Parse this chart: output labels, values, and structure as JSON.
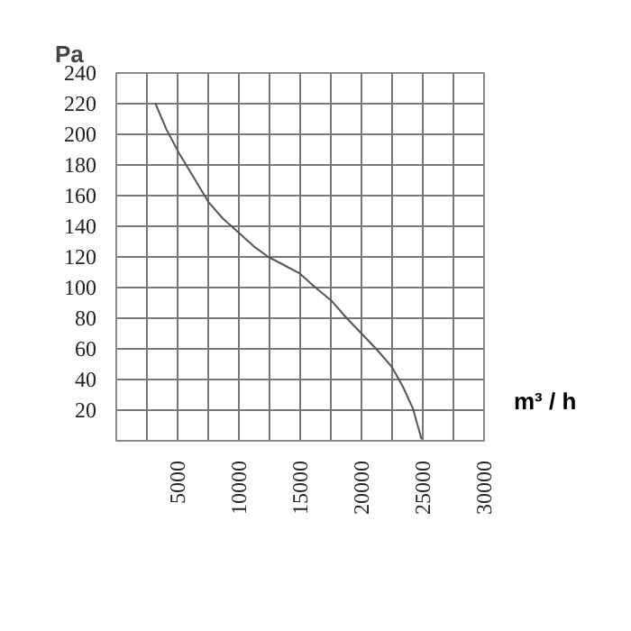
{
  "chart_data": {
    "type": "line",
    "xlabel": "m³ / h",
    "ylabel": "Pa",
    "x": [
      3200,
      4100,
      5100,
      6300,
      7500,
      8700,
      10100,
      11200,
      12400,
      13600,
      15000,
      16100,
      17600,
      18800,
      20000,
      21200,
      22500,
      23400,
      24200,
      24900
    ],
    "series": [
      {
        "color": "#555555",
        "values": [
          220,
          203,
          188,
          172,
          156,
          145,
          135,
          127,
          120,
          115,
          109,
          101,
          91,
          80,
          70,
          60,
          48,
          35,
          21,
          1
        ]
      }
    ],
    "xlim": [
      0,
      30000
    ],
    "ylim": [
      0,
      240
    ],
    "xticks": [
      {
        "value": 2500,
        "label": null
      },
      5000,
      {
        "value": 7500,
        "label": null
      },
      10000,
      {
        "value": 12500,
        "label": null
      },
      15000,
      {
        "value": 17500,
        "label": null
      },
      20000,
      {
        "value": 22500,
        "label": null
      },
      25000,
      {
        "value": 27500,
        "label": null
      },
      30000
    ],
    "yticks": [
      20,
      40,
      60,
      80,
      100,
      120,
      140,
      160,
      180,
      200,
      220,
      240
    ],
    "grid": true,
    "marker": "none",
    "line_style": "solid"
  }
}
